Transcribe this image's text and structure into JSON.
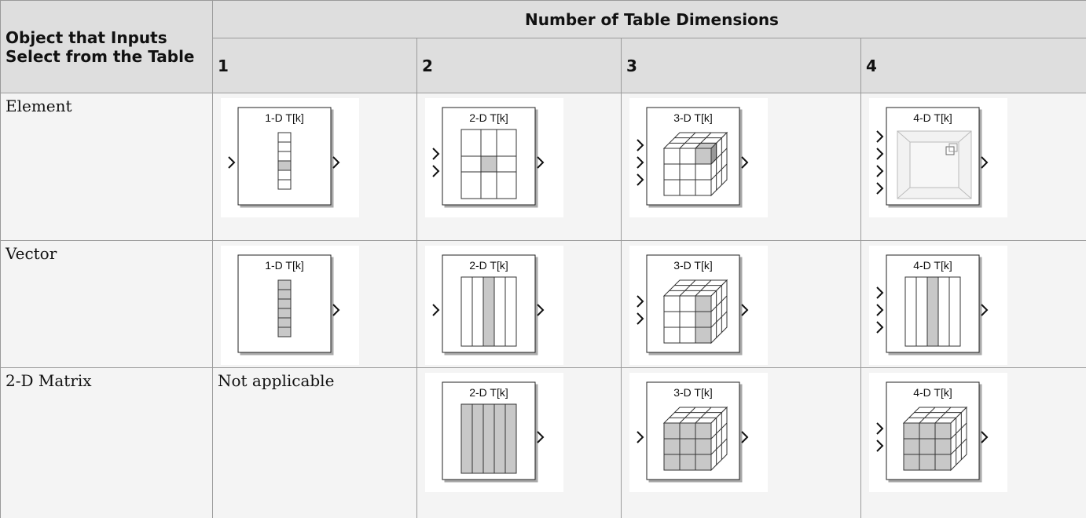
{
  "table": {
    "header": {
      "corner": "Object that Inputs Select from the Table",
      "group": "Number of Table Dimensions",
      "columns": [
        "1",
        "2",
        "3",
        "4"
      ]
    },
    "rows": [
      {
        "label": "Element",
        "cells": [
          {
            "block_label": "1-D T[k]"
          },
          {
            "block_label": "2-D T[k]"
          },
          {
            "block_label": "3-D T[k]"
          },
          {
            "block_label": "4-D T[k]"
          }
        ]
      },
      {
        "label": "Vector",
        "cells": [
          {
            "block_label": "1-D T[k]"
          },
          {
            "block_label": "2-D T[k]"
          },
          {
            "block_label": "3-D T[k]"
          },
          {
            "block_label": "4-D T[k]"
          }
        ]
      },
      {
        "label": "2-D Matrix",
        "cells": [
          {
            "text": "Not applicable"
          },
          {
            "block_label": "2-D T[k]"
          },
          {
            "block_label": "3-D T[k]"
          },
          {
            "block_label": "4-D T[k]"
          }
        ]
      }
    ]
  }
}
